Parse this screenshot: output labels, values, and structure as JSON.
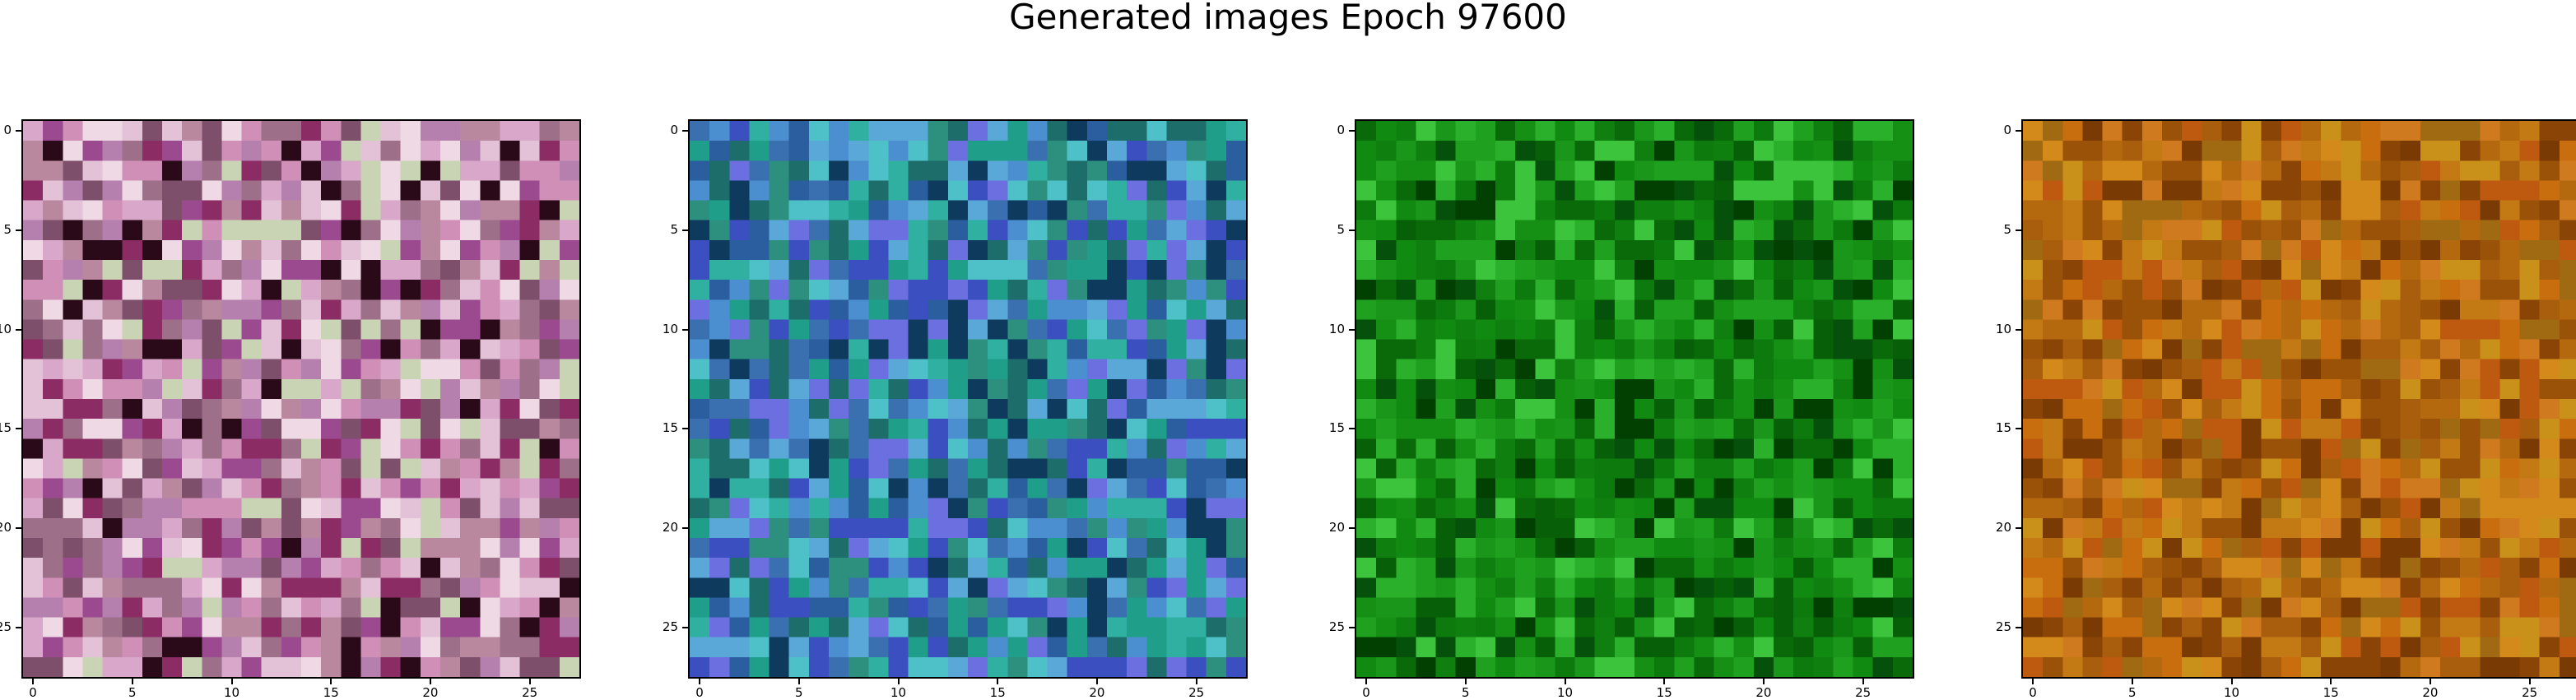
{
  "figure": {
    "title": "Generated images Epoch 97600"
  },
  "chart_data": [
    {
      "type": "heatmap",
      "grid_size": 28,
      "base_color": "#c896c0",
      "palette": [
        "#d8a7c9",
        "#b9889e",
        "#e3c2d8",
        "#9d6f88",
        "#cf8fb6",
        "#eed9e4",
        "#7d4f6a",
        "#b57fae",
        "#8b2d64",
        "#2a0a18",
        "#c9d4b5",
        "#9c4a8f"
      ],
      "xticks": [
        0,
        5,
        10,
        15,
        20,
        25
      ],
      "yticks": [
        0,
        5,
        10,
        15,
        20,
        25
      ],
      "xlim": [
        -0.5,
        27.5
      ],
      "ylim": [
        27.5,
        -0.5
      ]
    },
    {
      "type": "heatmap",
      "grid_size": 28,
      "base_color": "#2f7f8a",
      "palette": [
        "#2d8f7e",
        "#3a6fb0",
        "#4c8fd0",
        "#2a5e9e",
        "#1f9f8a",
        "#5aa8d8",
        "#3b4fc0",
        "#2fb0a0",
        "#1d6e6a",
        "#6b6fe0",
        "#0e3a5e",
        "#4ec0c8"
      ],
      "xticks": [
        0,
        5,
        10,
        15,
        20,
        25
      ],
      "yticks": [
        0,
        5,
        10,
        15,
        20,
        25
      ],
      "xlim": [
        -0.5,
        27.5
      ],
      "ylim": [
        27.5,
        -0.5
      ]
    },
    {
      "type": "heatmap",
      "grid_size": 28,
      "base_color": "#0e7a0e",
      "palette": [
        "#0d7a0d",
        "#159015",
        "#0a6a0a",
        "#1fa01f",
        "#076007",
        "#2bb02b",
        "#118a11",
        "#05500a",
        "#3cc43c",
        "#0f800f",
        "#024002",
        "#1a961a"
      ],
      "xticks": [
        0,
        5,
        10,
        15,
        20,
        25
      ],
      "yticks": [
        0,
        5,
        10,
        15,
        20,
        25
      ],
      "xlim": [
        -0.5,
        27.5
      ],
      "ylim": [
        27.5,
        -0.5
      ]
    },
    {
      "type": "heatmap",
      "grid_size": 28,
      "base_color": "#b06a10",
      "palette": [
        "#b5690f",
        "#c47a14",
        "#9a5208",
        "#d48a1a",
        "#a85e0c",
        "#c9901a",
        "#8a4406",
        "#bd5a10",
        "#d07a20",
        "#a06a12",
        "#7a3a04",
        "#c86e0e"
      ],
      "xticks": [
        0,
        5,
        10,
        15,
        20,
        25
      ],
      "yticks": [
        0,
        5,
        10,
        15,
        20,
        25
      ],
      "xlim": [
        -0.5,
        27.5
      ],
      "ylim": [
        27.5,
        -0.5
      ]
    }
  ]
}
